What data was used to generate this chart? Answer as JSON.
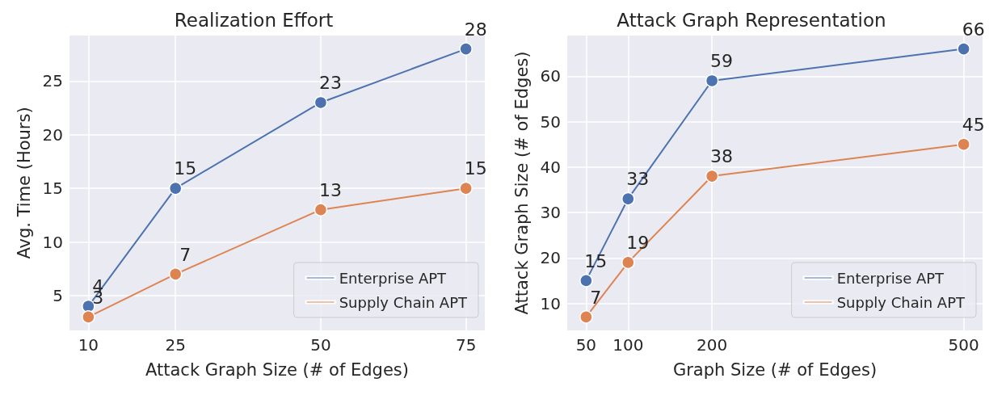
{
  "chart_data": [
    {
      "type": "line",
      "title": "Realization Effort",
      "xlabel": "Attack Graph Size (# of Edges)",
      "ylabel": "Avg. Time (Hours)",
      "x": [
        10,
        25,
        50,
        75
      ],
      "xlim": [
        6.75,
        78.25
      ],
      "xticks": [
        10,
        25,
        50,
        75
      ],
      "ylim": [
        1.75,
        29.25
      ],
      "yticks": [
        5,
        10,
        15,
        20,
        25
      ],
      "grid": true,
      "legend": "bottom right",
      "marker": "circle",
      "line_style": "solid",
      "data_labels": true,
      "series": [
        {
          "name": "Enterprise APT",
          "color": "#4c72b0",
          "values": [
            4,
            15,
            23,
            28
          ]
        },
        {
          "name": "Supply Chain APT",
          "color": "#dd8452",
          "values": [
            3,
            7,
            13,
            15
          ]
        }
      ]
    },
    {
      "type": "line",
      "title": "Attack Graph Representation",
      "xlabel": "Graph Size (# of Edges)",
      "ylabel": "Attack Graph Size (# of Edges)",
      "x": [
        50,
        100,
        200,
        500
      ],
      "xlim": [
        27.5,
        522.5
      ],
      "xticks": [
        50,
        100,
        200,
        500
      ],
      "ylim": [
        4.05,
        68.95
      ],
      "yticks": [
        10,
        20,
        30,
        40,
        50,
        60
      ],
      "grid": true,
      "legend": "bottom right",
      "marker": "circle",
      "line_style": "solid",
      "data_labels": true,
      "series": [
        {
          "name": "Enterprise APT",
          "color": "#4c72b0",
          "values": [
            15,
            33,
            59,
            66
          ]
        },
        {
          "name": "Supply Chain APT",
          "color": "#dd8452",
          "values": [
            7,
            19,
            38,
            45
          ]
        }
      ]
    }
  ]
}
